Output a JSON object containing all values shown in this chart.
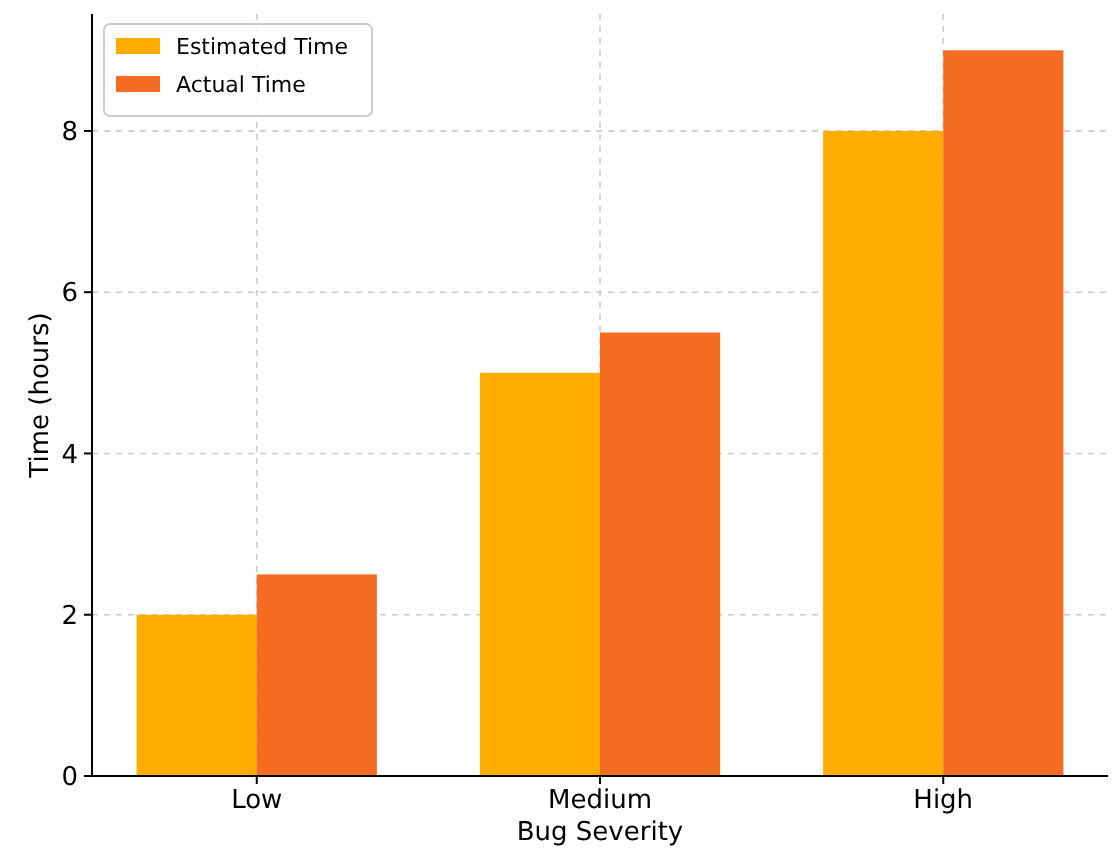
{
  "chart_data": {
    "type": "bar",
    "xlabel": "Bug Severity",
    "ylabel": "Time (hours)",
    "categories": [
      "Low",
      "Medium",
      "High"
    ],
    "series": [
      {
        "name": "Estimated Time",
        "color": "#ffad00",
        "values": [
          2,
          5,
          8
        ]
      },
      {
        "name": "Actual Time",
        "color": "#f46d22",
        "values": [
          2.5,
          5.5,
          9
        ]
      }
    ],
    "ylim": [
      0,
      9.45
    ],
    "yticks": [
      0,
      2,
      4,
      6,
      8
    ],
    "grid": true,
    "legend": "top left"
  }
}
